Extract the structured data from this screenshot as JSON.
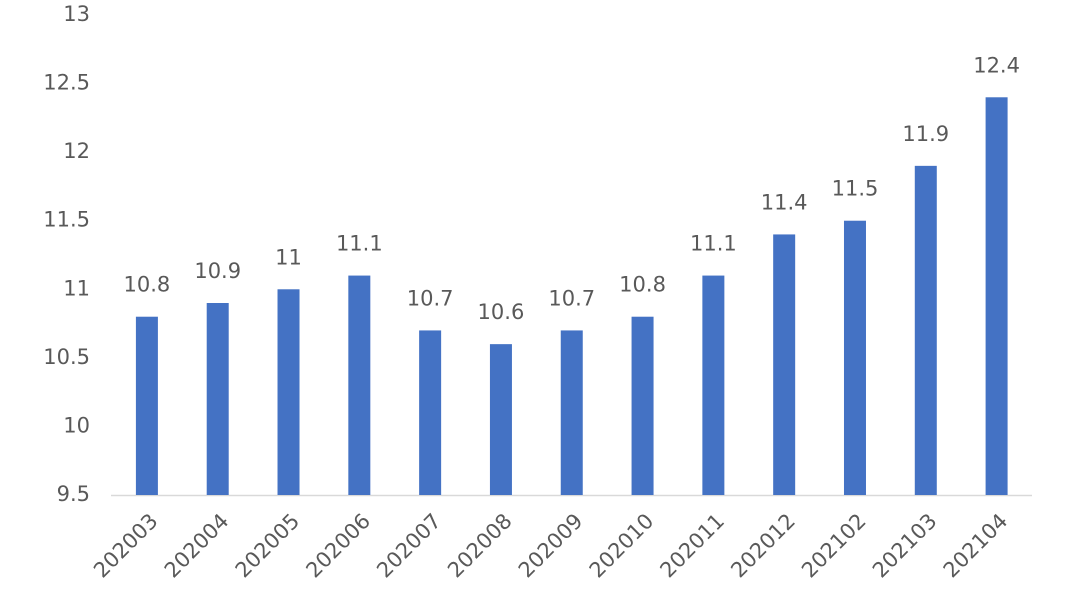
{
  "chart_data": {
    "type": "bar",
    "categories": [
      "202003",
      "202004",
      "202005",
      "202006",
      "202007",
      "202008",
      "202009",
      "202010",
      "202011",
      "202012",
      "202102",
      "202103",
      "202104"
    ],
    "values": [
      10.8,
      10.9,
      11,
      11.1,
      10.7,
      10.6,
      10.7,
      10.8,
      11.1,
      11.4,
      11.5,
      11.9,
      12.4
    ],
    "color": "#4472c4",
    "ylim": [
      9.5,
      13
    ],
    "yticks": [
      9.5,
      10,
      10.5,
      11,
      11.5,
      12,
      12.5,
      13
    ],
    "grid": false
  }
}
